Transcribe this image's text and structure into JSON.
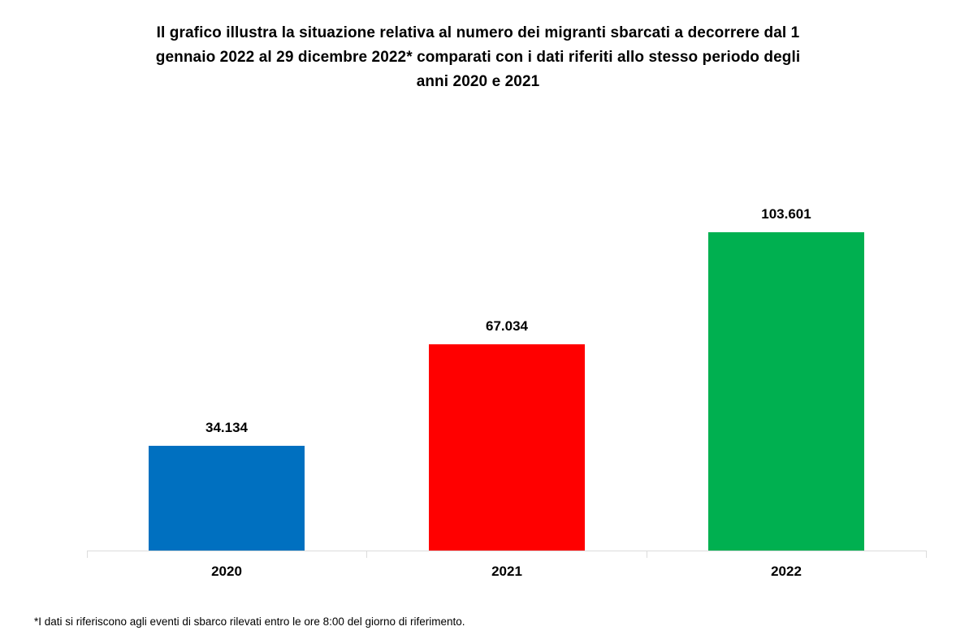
{
  "chart_data": {
    "type": "bar",
    "categories": [
      "2020",
      "2021",
      "2022"
    ],
    "values": [
      34134,
      67034,
      103601
    ],
    "value_labels": [
      "34.134",
      "67.034",
      "103.601"
    ],
    "bar_colors": [
      "#0070C0",
      "#FF0000",
      "#00B050"
    ],
    "title": "Il grafico illustra la situazione relativa al numero dei migranti sbarcati a decorrere dal 1 gennaio 2022 al 29 dicembre 2022* comparati con i dati riferiti allo stesso periodo degli anni 2020 e 2021",
    "title_lines": [
      "Il grafico illustra la situazione relativa al numero dei migranti sbarcati a decorrere dal 1",
      "gennaio 2022 al 29 dicembre 2022* comparati con i dati riferiti allo stesso periodo degli",
      "anni 2020 e 2021"
    ],
    "footnote": "*I dati si riferiscono agli eventi di sbarco rilevati entro le ore 8:00 del giorno di riferimento.",
    "xlabel": "",
    "ylabel": "",
    "ylim": [
      0,
      110000
    ],
    "grid": false,
    "legend": "none",
    "axis_color": "#DCDCDC",
    "text_color": "#000000"
  }
}
